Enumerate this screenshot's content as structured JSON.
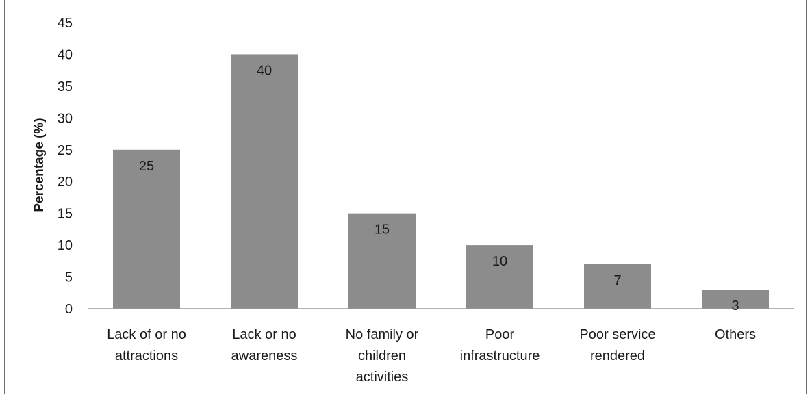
{
  "chart_data": {
    "type": "bar",
    "title": "",
    "xlabel": "",
    "ylabel": "Percentage (%)",
    "ylim": [
      0,
      45
    ],
    "ytick_step": 5,
    "grid": false,
    "legend": "none",
    "bar_color": "#8c8c8c",
    "axis_color": "#9a9a9a",
    "categories": [
      [
        "Lack of or no",
        "attractions"
      ],
      [
        "Lack or no",
        "awareness"
      ],
      [
        "No family or",
        "children",
        "activities"
      ],
      [
        "Poor",
        "infrastructure"
      ],
      [
        "Poor service",
        "rendered"
      ],
      [
        "Others"
      ]
    ],
    "values": [
      25,
      40,
      15,
      10,
      7,
      3
    ],
    "data_labels": [
      "25",
      "40",
      "15",
      "10",
      "7",
      "3"
    ]
  }
}
